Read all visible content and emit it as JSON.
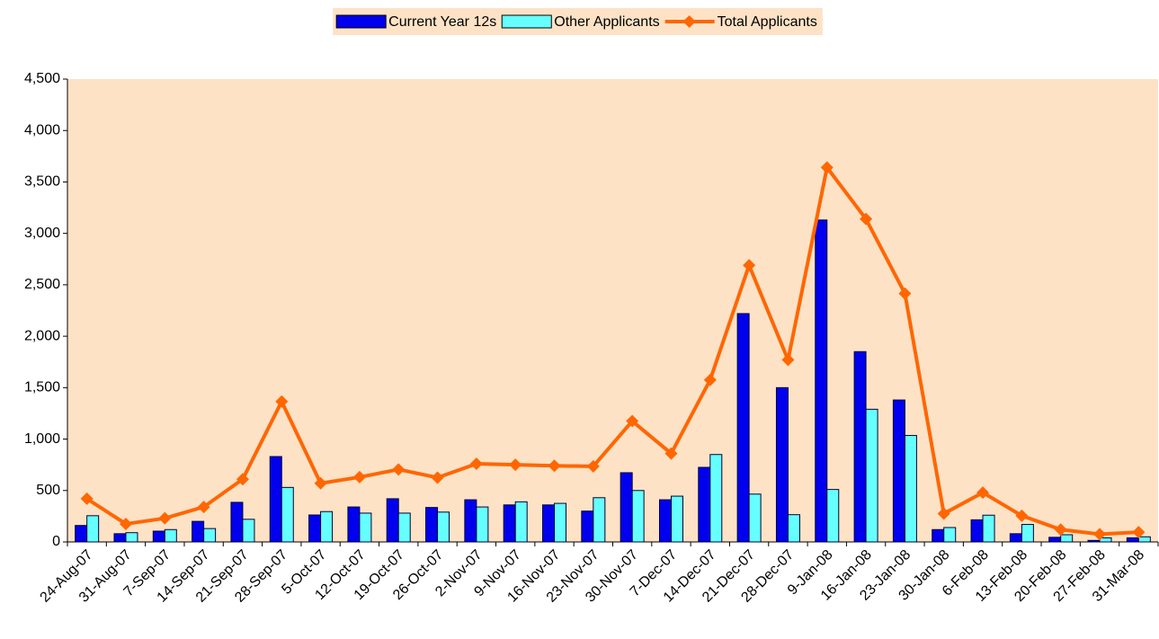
{
  "chart_data": {
    "type": "bar_line",
    "categories": [
      "24-Aug-07",
      "31-Aug-07",
      "7-Sep-07",
      "14-Sep-07",
      "21-Sep-07",
      "28-Sep-07",
      "5-Oct-07",
      "12-Oct-07",
      "19-Oct-07",
      "26-Oct-07",
      "2-Nov-07",
      "9-Nov-07",
      "16-Nov-07",
      "23-Nov-07",
      "30-Nov-07",
      "7-Dec-07",
      "14-Dec-07",
      "21-Dec-07",
      "28-Dec-07",
      "9-Jan-08",
      "16-Jan-08",
      "23-Jan-08",
      "30-Jan-08",
      "6-Feb-08",
      "13-Feb-08",
      "20-Feb-08",
      "27-Feb-08",
      "31-Mar-08"
    ],
    "series": [
      {
        "name": "Current Year 12s",
        "kind": "bar",
        "color": "#0000ee",
        "values": [
          160,
          80,
          105,
          200,
          385,
          830,
          262,
          340,
          420,
          335,
          410,
          360,
          360,
          300,
          673,
          410,
          725,
          2220,
          1500,
          3130,
          1850,
          1380,
          120,
          215,
          80,
          45,
          15,
          40
        ]
      },
      {
        "name": "Other Applicants",
        "kind": "bar",
        "color": "#66ffff",
        "values": [
          255,
          90,
          120,
          130,
          220,
          530,
          295,
          280,
          280,
          290,
          340,
          390,
          375,
          430,
          500,
          445,
          850,
          465,
          265,
          510,
          1290,
          1035,
          140,
          260,
          170,
          70,
          40,
          50
        ]
      },
      {
        "name": "Total Applicants",
        "kind": "line",
        "color": "#ff6600",
        "values": [
          420,
          175,
          230,
          340,
          610,
          1365,
          570,
          630,
          705,
          625,
          760,
          750,
          740,
          735,
          1175,
          860,
          1575,
          2690,
          1770,
          3640,
          3140,
          2415,
          275,
          480,
          255,
          120,
          75,
          95
        ]
      }
    ],
    "ylim": [
      0,
      4500
    ],
    "yticks": [
      0,
      500,
      {
        "value": 1000,
        "label": "1,000"
      },
      {
        "value": 1500,
        "label": "1,500"
      },
      {
        "value": 2000,
        "label": "2,000"
      },
      {
        "value": 2500,
        "label": "2,500"
      },
      {
        "value": 3000,
        "label": "3,000"
      },
      {
        "value": 3500,
        "label": "3,500"
      },
      {
        "value": 4000,
        "label": "4,000"
      },
      {
        "value": 4500,
        "label": "4,500"
      }
    ],
    "plot_background": "#fde2c6",
    "grid": false
  }
}
